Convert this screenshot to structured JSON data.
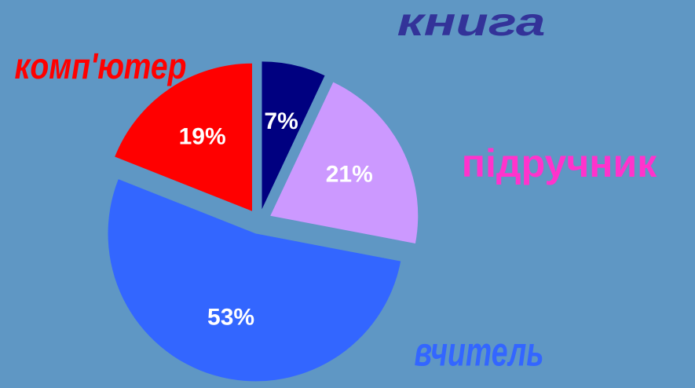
{
  "chart_data": {
    "type": "pie",
    "categories": [
      "книга",
      "підручник",
      "вчитель",
      "комп'ютер"
    ],
    "values": [
      7,
      21,
      53,
      19
    ],
    "value_labels": [
      "7%",
      "21%",
      "53%",
      "19%"
    ],
    "colors": [
      "#000080",
      "#cc99ff",
      "#3366ff",
      "#ff0000"
    ],
    "label_colors": [
      "#333399",
      "#ff33cc",
      "#3366ff",
      "#ff0000"
    ]
  }
}
